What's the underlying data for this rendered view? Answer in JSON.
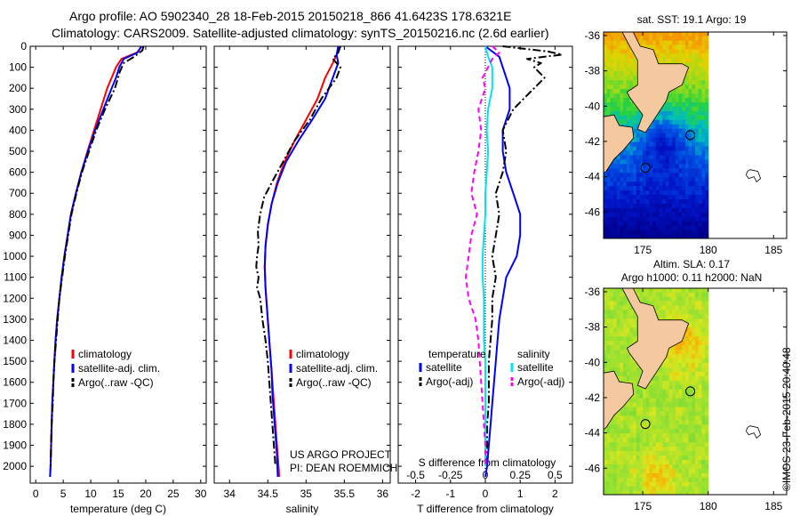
{
  "header": {
    "title_line1": "Argo profile: AO 5902340_28 18-Feb-2015 20150218_866 41.6423S 178.6321E",
    "title_line2": "Climatology: CARS2009. Satellite-adjusted climatology: synTS_20150216.nc (2.6d earlier)"
  },
  "stamp": "©IMOS 23-Feb-2015 20:40:48",
  "colors": {
    "climatology": "#ff0000",
    "satellite": "#0000ff",
    "argo": "#000000",
    "sat_salinity": "#00e5ee",
    "argo_salinity": "#ff00ff",
    "land": "#f5c9a0"
  },
  "chart_data": [
    {
      "type": "line",
      "panel": "temperature",
      "xlabel": "temperature (deg C)",
      "ylabel": "",
      "xlim": [
        -1,
        31
      ],
      "ylim": [
        2080,
        0
      ],
      "xticks": [
        0,
        5,
        10,
        15,
        20,
        25,
        30
      ],
      "yticks": [
        0,
        100,
        200,
        300,
        400,
        500,
        600,
        700,
        800,
        900,
        1000,
        1100,
        1200,
        1300,
        1400,
        1500,
        1600,
        1700,
        1800,
        1900,
        2000
      ],
      "ytick_labels": [
        "0",
        "100",
        "200",
        "300",
        "400",
        "500",
        "600",
        "700",
        "800",
        "900",
        "1000",
        "1100",
        "1200",
        "1300",
        "1400",
        "1500",
        "1600",
        "1700",
        "1800",
        "1900",
        "2000"
      ],
      "legend": {
        "position": "bottom-right",
        "entries": [
          "climatology",
          "satellite-adj. clim.",
          "Argo(..raw -QC)"
        ]
      },
      "series": [
        {
          "name": "climatology",
          "color": "#ff0000",
          "style": "solid",
          "depth": [
            0,
            30,
            60,
            100,
            150,
            200,
            300,
            400,
            500,
            600,
            700,
            800,
            900,
            1000,
            1100,
            1200,
            1300,
            1400,
            1500,
            1600,
            1700,
            1800,
            1900,
            2000,
            2050
          ],
          "values": [
            19.3,
            18.4,
            15.6,
            14.6,
            13.8,
            13.0,
            11.8,
            10.6,
            9.4,
            8.3,
            7.3,
            6.4,
            5.8,
            5.2,
            4.7,
            4.3,
            3.9,
            3.6,
            3.4,
            3.2,
            3.0,
            2.9,
            2.8,
            2.7,
            2.6
          ]
        },
        {
          "name": "satellite-adj. clim.",
          "color": "#0000ff",
          "style": "solid",
          "depth": [
            0,
            30,
            60,
            100,
            150,
            200,
            300,
            400,
            500,
            600,
            700,
            800,
            900,
            1000,
            1100,
            1200,
            1300,
            1400,
            1500,
            1600,
            1700,
            1800,
            1900,
            2000,
            2050
          ],
          "values": [
            19.2,
            18.5,
            16.0,
            15.2,
            14.6,
            13.8,
            12.3,
            10.8,
            9.5,
            8.3,
            7.3,
            6.4,
            5.8,
            5.2,
            4.7,
            4.3,
            3.9,
            3.6,
            3.4,
            3.2,
            3.0,
            2.9,
            2.8,
            2.7,
            2.6
          ]
        },
        {
          "name": "Argo(..raw -QC)",
          "color": "#000000",
          "style": "dashdot",
          "depth": [
            0,
            20,
            50,
            80,
            120,
            200,
            300,
            400,
            500,
            600,
            700,
            800,
            900,
            1000,
            1100,
            1200,
            1300,
            1400,
            1500,
            1600,
            1700,
            1800,
            1900,
            2000
          ],
          "values": [
            19.6,
            19.4,
            17.9,
            16.0,
            15.3,
            14.4,
            12.6,
            11.0,
            9.7,
            8.4,
            7.4,
            6.5,
            5.9,
            5.3,
            4.8,
            4.3,
            4.0,
            3.7,
            3.4,
            3.2,
            3.1,
            2.9,
            2.8,
            2.7
          ]
        }
      ]
    },
    {
      "type": "line",
      "panel": "salinity",
      "xlabel": "salinity",
      "ylabel": "",
      "xlim": [
        33.8,
        36.1
      ],
      "ylim": [
        2080,
        0
      ],
      "xticks": [
        34,
        34.5,
        35,
        35.5,
        36
      ],
      "xtick_labels": [
        "34",
        "34.5",
        "35",
        "35.5",
        "36"
      ],
      "legend": {
        "position": "bottom-right",
        "entries": [
          "climatology",
          "satellite-adj. clim.",
          "Argo(..raw -QC)"
        ]
      },
      "annotations": [
        "US ARGO PROJECT",
        "PI: DEAN ROEMMICH"
      ],
      "series": [
        {
          "name": "climatology",
          "color": "#ff0000",
          "style": "solid",
          "depth": [
            0,
            40,
            80,
            150,
            250,
            350,
            450,
            550,
            650,
            750,
            850,
            950,
            1050,
            1150,
            1250,
            1350,
            1450,
            1550,
            1650,
            1750,
            1850,
            1950,
            2050
          ],
          "values": [
            35.45,
            35.4,
            35.35,
            35.25,
            35.15,
            35.0,
            34.85,
            34.72,
            34.62,
            34.55,
            34.5,
            34.47,
            34.46,
            34.47,
            34.49,
            34.51,
            34.53,
            34.55,
            34.57,
            34.59,
            34.61,
            34.63,
            34.65
          ]
        },
        {
          "name": "satellite-adj. clim.",
          "color": "#0000ff",
          "style": "solid",
          "depth": [
            0,
            40,
            80,
            150,
            250,
            350,
            450,
            550,
            650,
            750,
            850,
            950,
            1050,
            1150,
            1250,
            1350,
            1450,
            1550,
            1650,
            1750,
            1850,
            1950,
            2050
          ],
          "values": [
            35.42,
            35.4,
            35.42,
            35.35,
            35.25,
            35.08,
            34.9,
            34.74,
            34.63,
            34.55,
            34.5,
            34.47,
            34.46,
            34.47,
            34.49,
            34.51,
            34.53,
            34.55,
            34.56,
            34.58,
            34.6,
            34.62,
            34.63
          ]
        },
        {
          "name": "Argo(..raw -QC)",
          "color": "#000000",
          "style": "dashdot",
          "depth": [
            0,
            30,
            60,
            100,
            150,
            250,
            350,
            450,
            550,
            650,
            720,
            800,
            880,
            950,
            1000,
            1050,
            1100,
            1150,
            1200,
            1300,
            1400,
            1500,
            1600,
            1700,
            1800,
            1900,
            2000
          ],
          "values": [
            35.45,
            35.42,
            35.35,
            35.45,
            35.4,
            35.2,
            35.05,
            34.85,
            34.7,
            34.55,
            34.45,
            34.4,
            34.37,
            34.38,
            34.36,
            34.35,
            34.38,
            34.36,
            34.4,
            34.43,
            34.47,
            34.5,
            34.52,
            34.54,
            34.56,
            34.58,
            34.6
          ]
        }
      ]
    },
    {
      "type": "line",
      "panel": "difference",
      "xlabel": "T difference from climatology",
      "xlabel_top": "S difference from climatology",
      "ylabel": "",
      "xlim": [
        -2.5,
        2.5
      ],
      "ylim": [
        2080,
        0
      ],
      "xticks": [
        -2,
        -1,
        0,
        1,
        2
      ],
      "xtick_labels": [
        "-2",
        "-1",
        "0",
        "1",
        "2"
      ],
      "xticks_s": [
        -0.5,
        -0.25,
        0,
        0.25,
        0.5
      ],
      "xtick_labels_s": [
        "-0.5",
        "-0.25",
        "0",
        "0.25",
        "0.5"
      ],
      "legend": {
        "position": "bottom",
        "temperature_heading": "temperature",
        "salinity_heading": "salinity",
        "entries": [
          "satellite",
          "Argo(-adj)",
          "satellite",
          "Argo(-adj)"
        ]
      },
      "series": [
        {
          "name": "satellite",
          "group": "temperature",
          "color": "#0000ff",
          "style": "solid",
          "depth": [
            0,
            50,
            100,
            200,
            300,
            400,
            500,
            600,
            700,
            800,
            900,
            1000,
            1100,
            1200,
            1300,
            1400,
            1500,
            1600,
            1700,
            1800,
            1900,
            2000,
            2050
          ],
          "values": [
            0,
            0.4,
            0.5,
            0.7,
            0.7,
            0.5,
            0.5,
            0.6,
            0.8,
            1.0,
            1.0,
            0.9,
            0.6,
            0.5,
            0.4,
            0.35,
            0.3,
            0.25,
            0.2,
            0.15,
            0.1,
            0.05,
            0
          ]
        },
        {
          "name": "Argo(-adj)",
          "group": "temperature",
          "color": "#000000",
          "style": "dashdot",
          "depth": [
            0,
            25,
            40,
            60,
            80,
            100,
            150,
            200,
            300,
            400,
            500,
            600,
            700,
            800,
            900,
            1000,
            1100,
            1200,
            1300,
            1400,
            1500,
            1600,
            1700,
            1800,
            1900,
            2000
          ],
          "values": [
            0.5,
            1.8,
            2.2,
            1.2,
            1.6,
            1.4,
            1.7,
            1.4,
            0.8,
            0.5,
            0.6,
            0.5,
            0.3,
            0.4,
            0.3,
            0.2,
            0.3,
            0.2,
            0.2,
            0.15,
            0.1,
            0.1,
            0.1,
            0.05,
            0.05,
            0
          ]
        },
        {
          "name": "satellite",
          "group": "salinity",
          "color": "#00e5ee",
          "style": "solid",
          "depth": [
            0,
            50,
            100,
            200,
            300,
            400,
            500,
            600,
            700,
            800,
            900,
            1000,
            1100,
            1200,
            1300,
            1400,
            1500,
            1600,
            1700,
            1800,
            1900,
            2000
          ],
          "values": [
            0,
            0.02,
            0.05,
            0.05,
            0.02,
            0.01,
            0.02,
            0.01,
            0.0,
            0.0,
            -0.01,
            -0.02,
            -0.02,
            -0.01,
            -0.01,
            -0.01,
            0,
            0,
            0,
            0,
            0,
            0
          ]
        },
        {
          "name": "Argo(-adj)",
          "group": "salinity",
          "color": "#ff00ff",
          "style": "dashed",
          "depth": [
            0,
            30,
            60,
            100,
            150,
            200,
            300,
            400,
            500,
            600,
            700,
            800,
            900,
            1000,
            1100,
            1200,
            1300,
            1400,
            1500,
            1600,
            1700,
            1800,
            1900,
            2000
          ],
          "values": [
            0.05,
            0.1,
            0.05,
            0.02,
            -0.02,
            0,
            -0.05,
            -0.03,
            -0.05,
            -0.08,
            -0.1,
            -0.06,
            -0.1,
            -0.12,
            -0.14,
            -0.12,
            -0.07,
            -0.05,
            -0.04,
            -0.03,
            -0.02,
            -0.01,
            0,
            0
          ]
        }
      ]
    },
    {
      "type": "heatmap",
      "panel": "map-sst",
      "title": "sat. SST: 19.1  Argo: 19",
      "xlim": [
        172,
        186
      ],
      "ylim": [
        -47.5,
        -35.8
      ],
      "xticks": [
        175,
        180,
        185
      ],
      "yticks": [
        -36,
        -38,
        -40,
        -42,
        -44,
        -46
      ],
      "float_position": {
        "lon": 178.6321,
        "lat": -41.6423
      }
    },
    {
      "type": "heatmap",
      "panel": "map-sla",
      "title": "Altim. SLA: 0.17",
      "subtitle": "Argo h1000: 0.11  h2000: NaN",
      "xlim": [
        172,
        186
      ],
      "ylim": [
        -47.5,
        -35.8
      ],
      "xticks": [
        175,
        180,
        185
      ],
      "yticks": [
        -36,
        -38,
        -40,
        -42,
        -44,
        -46
      ],
      "float_position": {
        "lon": 178.6321,
        "lat": -41.6423
      }
    }
  ]
}
